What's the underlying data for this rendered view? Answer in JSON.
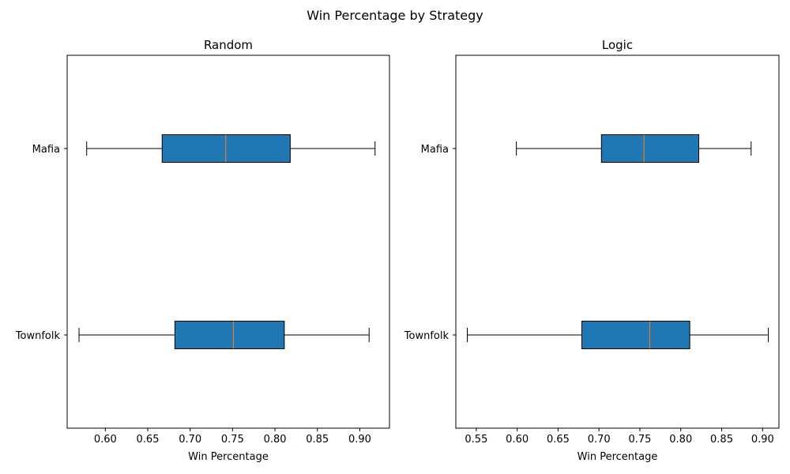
{
  "chart_data": {
    "type": "boxplot",
    "title": "Win Percentage by Strategy",
    "orientation": "horizontal",
    "panels": [
      {
        "title": "Random",
        "xlabel": "Win Percentage",
        "xlim": [
          0.555,
          0.935
        ],
        "xticks": [
          "0.60",
          "0.65",
          "0.70",
          "0.75",
          "0.80",
          "0.85",
          "0.90"
        ],
        "categories": [
          "Townfolk",
          "Mafia"
        ],
        "boxes": [
          {
            "category": "Townfolk",
            "whisker_low": 0.569,
            "q1": 0.682,
            "median": 0.751,
            "q3": 0.811,
            "whisker_high": 0.911
          },
          {
            "category": "Mafia",
            "whisker_low": 0.578,
            "q1": 0.667,
            "median": 0.742,
            "q3": 0.818,
            "whisker_high": 0.918
          }
        ]
      },
      {
        "title": "Logic",
        "xlabel": "Win Percentage",
        "xlim": [
          0.525,
          0.92
        ],
        "xticks": [
          "0.55",
          "0.60",
          "0.65",
          "0.70",
          "0.75",
          "0.80",
          "0.85",
          "0.90"
        ],
        "categories": [
          "Townfolk",
          "Mafia"
        ],
        "boxes": [
          {
            "category": "Townfolk",
            "whisker_low": 0.539,
            "q1": 0.679,
            "median": 0.762,
            "q3": 0.811,
            "whisker_high": 0.907
          },
          {
            "category": "Mafia",
            "whisker_low": 0.599,
            "q1": 0.703,
            "median": 0.755,
            "q3": 0.822,
            "whisker_high": 0.886
          }
        ]
      }
    ],
    "colors": {
      "box_fill": "#1f77b4",
      "median": "#ff7f0e",
      "lines": "#000000"
    }
  }
}
